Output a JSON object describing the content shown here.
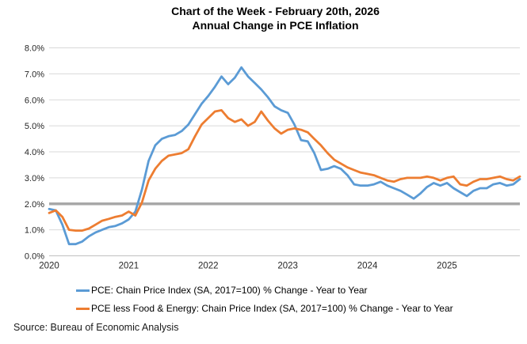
{
  "title": {
    "line1": "Chart of the Week - February 20th, 2026",
    "line2": "Annual Change in PCE Inflation"
  },
  "source": "Source: Bureau of Economic Analysis",
  "colors": {
    "pce_line": "#5B9BD5",
    "core_pce_line": "#ED7D31",
    "reference_line": "#A8A8A8",
    "gridline": "#D9D9D9",
    "axis_line": "#BFBFBF",
    "axis_text": "#262626"
  },
  "chart_data": {
    "type": "line",
    "title": "Annual Change in PCE Inflation",
    "x_unit": "month",
    "x_start": "2020-01",
    "x_end": "2025-12",
    "x_ticks": [
      {
        "label": "2020",
        "month_index": 0
      },
      {
        "label": "2021",
        "month_index": 12
      },
      {
        "label": "2022",
        "month_index": 24
      },
      {
        "label": "2023",
        "month_index": 36
      },
      {
        "label": "2024",
        "month_index": 48
      },
      {
        "label": "2025",
        "month_index": 60
      }
    ],
    "ylim": [
      0,
      8
    ],
    "y_tick_labels": [
      "0.0%",
      "1.0%",
      "2.0%",
      "3.0%",
      "4.0%",
      "5.0%",
      "6.0%",
      "7.0%",
      "8.0%"
    ],
    "grid": "horizontal",
    "legend_position": "bottom-left",
    "reference_line": {
      "value": 2.0,
      "color": "#A8A8A8",
      "width": 3.5
    },
    "series": [
      {
        "name": "PCE: Chain Price Index (SA, 2017=100) % Change - Year to Year",
        "color": "#5B9BD5",
        "values": [
          1.8,
          1.75,
          1.2,
          0.45,
          0.45,
          0.55,
          0.75,
          0.9,
          1.0,
          1.1,
          1.15,
          1.25,
          1.4,
          1.7,
          2.55,
          3.65,
          4.25,
          4.5,
          4.6,
          4.65,
          4.8,
          5.05,
          5.45,
          5.85,
          6.15,
          6.5,
          6.9,
          6.6,
          6.85,
          7.25,
          6.9,
          6.65,
          6.4,
          6.1,
          5.75,
          5.6,
          5.5,
          5.05,
          4.45,
          4.4,
          3.95,
          3.3,
          3.35,
          3.45,
          3.35,
          3.1,
          2.75,
          2.7,
          2.7,
          2.75,
          2.85,
          2.7,
          2.6,
          2.5,
          2.35,
          2.2,
          2.4,
          2.65,
          2.8,
          2.7,
          2.8,
          2.6,
          2.45,
          2.3,
          2.5,
          2.6,
          2.6,
          2.75,
          2.8,
          2.7,
          2.75,
          2.95
        ]
      },
      {
        "name": "PCE less Food & Energy: Chain Price Index (SA, 2017=100) % Change - Year to Year",
        "color": "#ED7D31",
        "values": [
          1.65,
          1.75,
          1.5,
          1.0,
          0.97,
          0.97,
          1.05,
          1.2,
          1.35,
          1.42,
          1.5,
          1.55,
          1.7,
          1.55,
          2.05,
          2.9,
          3.35,
          3.65,
          3.85,
          3.9,
          3.95,
          4.1,
          4.6,
          5.05,
          5.3,
          5.55,
          5.6,
          5.3,
          5.15,
          5.25,
          5.0,
          5.15,
          5.55,
          5.2,
          4.9,
          4.7,
          4.85,
          4.9,
          4.85,
          4.75,
          4.5,
          4.25,
          3.95,
          3.7,
          3.55,
          3.4,
          3.3,
          3.2,
          3.15,
          3.1,
          3.0,
          2.9,
          2.85,
          2.95,
          3.0,
          3.0,
          3.0,
          3.05,
          3.0,
          2.9,
          3.0,
          3.05,
          2.75,
          2.7,
          2.85,
          2.95,
          2.95,
          3.0,
          3.05,
          2.95,
          2.9,
          3.05
        ]
      }
    ]
  },
  "legend": {
    "items": [
      {
        "label": "PCE: Chain Price Index (SA, 2017=100) % Change - Year to Year",
        "color": "#5B9BD5"
      },
      {
        "label": "PCE less Food & Energy: Chain Price Index (SA, 2017=100) % Change - Year to Year",
        "color": "#ED7D31"
      }
    ]
  }
}
